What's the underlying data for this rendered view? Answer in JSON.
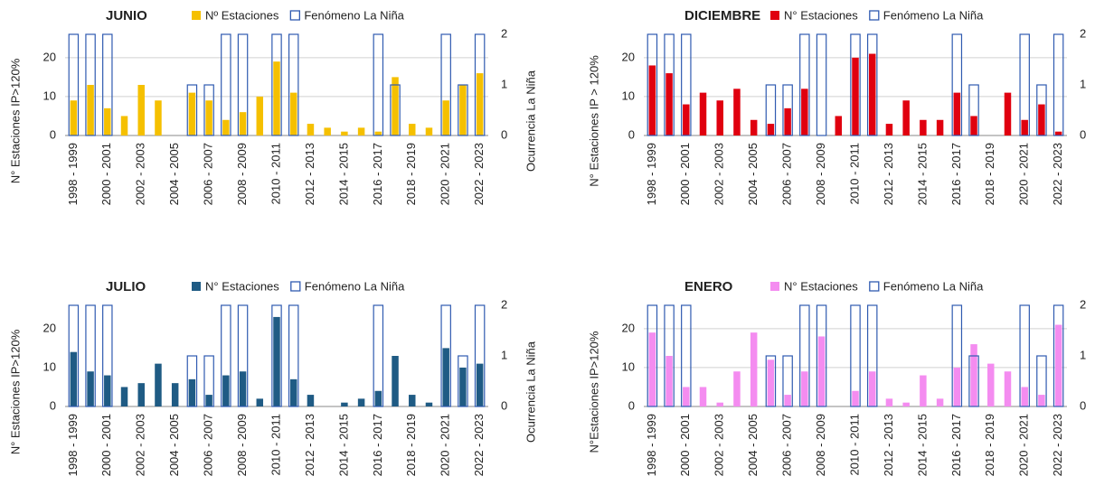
{
  "chart_data": [
    {
      "type": "bar",
      "title": "JUNIO",
      "categories": [
        "1998 - 1999",
        null,
        "2000 - 2001",
        null,
        "2002 - 2003",
        null,
        "2004 - 2005",
        null,
        "2006 - 2007",
        null,
        "2008 - 2009",
        null,
        "2010 - 2011",
        null,
        "2012 - 2013",
        null,
        "2014 - 2015",
        null,
        "2016 - 2017",
        null,
        "2018 - 2019",
        null,
        "2020 - 2021",
        null,
        "2022 - 2023"
      ],
      "series": [
        {
          "name": "Nº Estaciones",
          "color": "#f5c000",
          "values": [
            9,
            13,
            7,
            5,
            13,
            9,
            0,
            11,
            9,
            4,
            6,
            10,
            19,
            11,
            3,
            2,
            1,
            2,
            1,
            15,
            3,
            2,
            9,
            13,
            16
          ]
        },
        {
          "name": "Fenómeno La Niña",
          "color": "#2f5ab0",
          "axis": "y2",
          "values": [
            2,
            2,
            2,
            0,
            0,
            0,
            0,
            1,
            1,
            2,
            2,
            0,
            2,
            2,
            0,
            0,
            0,
            0,
            2,
            1,
            0,
            0,
            2,
            1,
            2
          ]
        }
      ],
      "y_label": "N° Estaciones IP>120%",
      "y2_label": "Ocurrencia La Niña",
      "ylim": [
        0,
        26
      ],
      "yticks": [
        0,
        10,
        20
      ],
      "y2lim": [
        0,
        2
      ],
      "y2ticks": [
        0,
        1,
        2
      ],
      "grid": true
    },
    {
      "type": "bar",
      "title": "DICIEMBRE",
      "categories": [
        "1998 - 1999",
        null,
        "2000 - 2001",
        null,
        "2002 - 2003",
        null,
        "2004 - 2005",
        null,
        "2006 - 2007",
        null,
        "2008 - 2009",
        null,
        "2010 - 2011",
        null,
        "2012 - 2013",
        null,
        "2014 - 2015",
        null,
        "2016 - 2017",
        null,
        "2018 - 2019",
        null,
        "2020 - 2021",
        null,
        "2022 - 2023"
      ],
      "series": [
        {
          "name": "N° Estaciones",
          "color": "#e0000f",
          "values": [
            18,
            16,
            8,
            11,
            9,
            12,
            4,
            3,
            7,
            12,
            0,
            5,
            20,
            21,
            3,
            9,
            4,
            4,
            11,
            5,
            0,
            11,
            4,
            8,
            1
          ]
        },
        {
          "name": "Fenómeno La Niña",
          "color": "#2f5ab0",
          "axis": "y2",
          "values": [
            2,
            2,
            2,
            0,
            0,
            0,
            0,
            1,
            1,
            2,
            2,
            0,
            2,
            2,
            0,
            0,
            0,
            0,
            2,
            1,
            0,
            0,
            2,
            1,
            2
          ]
        }
      ],
      "y_label": "N° Estaciones IP > 120%",
      "y2_label": "Ocurrencia La Niña",
      "ylim": [
        0,
        26
      ],
      "yticks": [
        0,
        10,
        20
      ],
      "y2lim": [
        0,
        2
      ],
      "y2ticks": [
        0,
        1,
        2
      ],
      "grid": true
    },
    {
      "type": "bar",
      "title": "JULIO",
      "categories": [
        "1998 - 1999",
        null,
        "2000 - 2001",
        null,
        "2002 - 2003",
        null,
        "2004 - 2005",
        null,
        "2006 - 2007",
        null,
        "2008 - 2009",
        null,
        "2010 - 2011",
        null,
        "2012 - 2013",
        null,
        "2014 - 2015",
        null,
        "2016 - 2017",
        null,
        "2018 - 2019",
        null,
        "2020 - 2021",
        null,
        "2022 - 2023"
      ],
      "series": [
        {
          "name": "N° Estaciones",
          "color": "#1f5b84",
          "values": [
            14,
            9,
            8,
            5,
            6,
            11,
            6,
            7,
            3,
            8,
            9,
            2,
            23,
            7,
            3,
            0,
            1,
            2,
            4,
            13,
            3,
            1,
            15,
            10,
            11
          ]
        },
        {
          "name": "Fenómeno La Niña",
          "color": "#2f5ab0",
          "axis": "y2",
          "values": [
            2,
            2,
            2,
            0,
            0,
            0,
            0,
            1,
            1,
            2,
            2,
            0,
            2,
            2,
            0,
            0,
            0,
            0,
            2,
            0,
            0,
            0,
            2,
            1,
            2
          ]
        }
      ],
      "y_label": "N° Estaciones IP>120%",
      "y2_label": "Ocurrencia La Niña",
      "ylim": [
        0,
        26
      ],
      "yticks": [
        0,
        10,
        20
      ],
      "y2lim": [
        0,
        2
      ],
      "y2ticks": [
        0,
        1,
        2
      ],
      "grid": false
    },
    {
      "type": "bar",
      "title": "ENERO",
      "categories": [
        "1998 - 1999",
        null,
        "2000 - 2001",
        null,
        "2002 - 2003",
        null,
        "2004 - 2005",
        null,
        "2006 - 2007",
        null,
        "2008 - 2009",
        null,
        "2010 - 2011",
        null,
        "2012 - 2013",
        null,
        "2014 - 2015",
        null,
        "2016 - 2017",
        null,
        "2018 - 2019",
        null,
        "2020 - 2021",
        null,
        "2022 - 2023"
      ],
      "series": [
        {
          "name": "N° Estaciones",
          "color": "#f48cf0",
          "values": [
            19,
            13,
            5,
            5,
            1,
            9,
            19,
            12,
            3,
            9,
            18,
            0,
            4,
            9,
            2,
            1,
            8,
            2,
            10,
            16,
            11,
            9,
            5,
            3,
            21
          ]
        },
        {
          "name": "Fenómeno La Niña",
          "color": "#2f5ab0",
          "axis": "y2",
          "values": [
            2,
            2,
            2,
            0,
            0,
            0,
            0,
            1,
            1,
            2,
            2,
            0,
            2,
            2,
            0,
            0,
            0,
            0,
            2,
            1,
            0,
            0,
            2,
            1,
            2
          ]
        }
      ],
      "y_label": "N°Estaciones IP>120%",
      "y2_label": "Ocurrencia La Niña",
      "ylim": [
        0,
        26
      ],
      "yticks": [
        0,
        10,
        20
      ],
      "y2lim": [
        0,
        2
      ],
      "y2ticks": [
        0,
        1,
        2
      ],
      "grid": true
    }
  ]
}
